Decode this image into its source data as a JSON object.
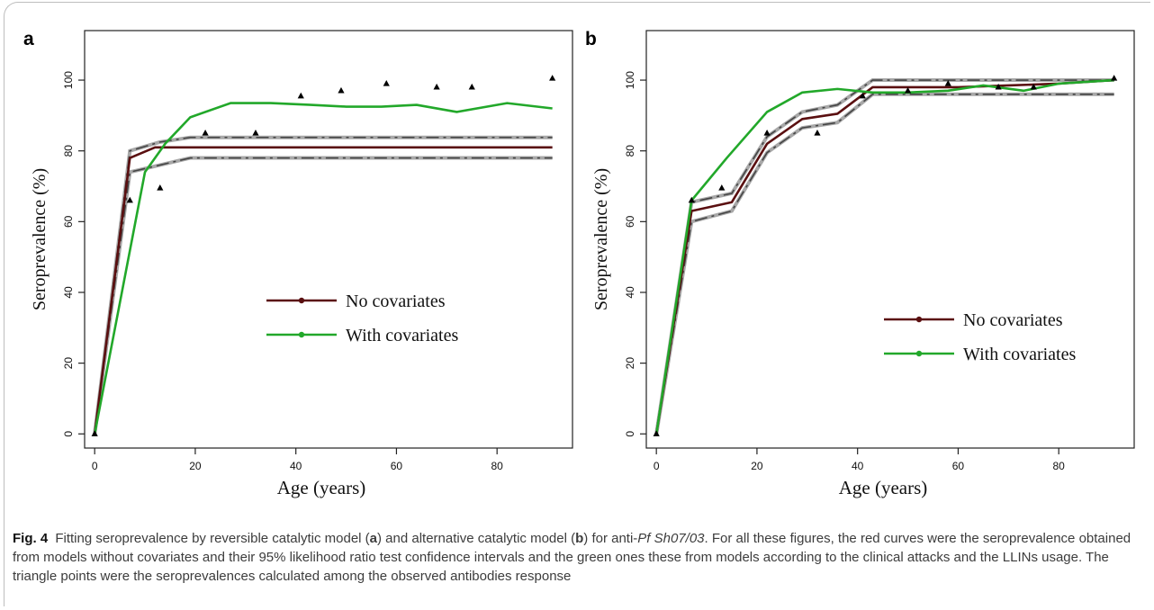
{
  "caption": {
    "fig_label": "Fig. 4",
    "text_1": " Fitting seroprevalence by reversible catalytic model (",
    "a": "a",
    "text_2": ") and alternative catalytic model (",
    "b": "b",
    "text_3": ") for anti-",
    "antigen": "Pf Sh07/03",
    "text_4": ". For all these figures, the red curves were the seroprevalence obtained from models without covariates and their 95% likelihood ratio test confidence intervals and the green ones these from models according to the clinical attacks and the LLINs usage. The triangle points were the seroprevalences calculated among the observed antibodies response"
  },
  "colors": {
    "no_covariates": "#5a0f10",
    "with_covariates": "#22a82a",
    "ci_dark": "#444444",
    "ci_light": "#a8a8a8",
    "points": "#000000"
  },
  "chart_data": [
    {
      "panel": "a",
      "type": "line",
      "xlabel": "Age (years)",
      "ylabel": "Seroprevalence (%)",
      "xlim": [
        -2,
        95
      ],
      "ylim": [
        -4,
        114
      ],
      "xticks": [
        0,
        20,
        40,
        60,
        80
      ],
      "yticks": [
        0,
        20,
        40,
        60,
        80,
        100
      ],
      "legend": {
        "position": "center-right",
        "entries": [
          "No covariates",
          "With covariates"
        ]
      },
      "series": [
        {
          "name": "No covariates",
          "x": [
            0,
            7,
            12,
            20,
            40,
            60,
            80,
            91
          ],
          "y": [
            0,
            78,
            81,
            81,
            81,
            81,
            81,
            81
          ]
        },
        {
          "name": "With covariates",
          "x": [
            0,
            10,
            14,
            19,
            27,
            35,
            43,
            50,
            57,
            64,
            72,
            82,
            91
          ],
          "y": [
            0,
            74,
            82,
            89.5,
            93.5,
            93.5,
            93,
            92.5,
            92.5,
            93,
            91,
            93.5,
            92
          ]
        }
      ],
      "confidence_band": [
        {
          "x": [
            0,
            7,
            13,
            19,
            91
          ],
          "y": [
            0,
            80,
            82.5,
            83.8,
            83.8
          ]
        },
        {
          "x": [
            0,
            7,
            13,
            19,
            91
          ],
          "y": [
            0,
            74,
            76,
            78,
            78
          ]
        }
      ],
      "points": {
        "x": [
          0,
          7,
          13,
          22,
          32,
          41,
          49,
          58,
          68,
          75,
          91
        ],
        "y": [
          0,
          66,
          69.5,
          85,
          85,
          95.5,
          97,
          99,
          98,
          98,
          100.5
        ]
      }
    },
    {
      "panel": "b",
      "type": "line",
      "xlabel": "Age (years)",
      "ylabel": "Seroprevalence (%)",
      "xlim": [
        -2,
        95
      ],
      "ylim": [
        -4,
        114
      ],
      "xticks": [
        0,
        20,
        40,
        60,
        80
      ],
      "yticks": [
        0,
        20,
        40,
        60,
        80,
        100
      ],
      "legend": {
        "position": "bottom-right",
        "entries": [
          "No covariates",
          "With covariates"
        ]
      },
      "series": [
        {
          "name": "No covariates",
          "x": [
            0,
            7,
            15,
            22,
            29,
            36,
            43,
            50,
            60,
            70,
            80,
            91
          ],
          "y": [
            0,
            63,
            65.5,
            82,
            89,
            90.5,
            98,
            98,
            98,
            98.5,
            99,
            100
          ]
        },
        {
          "name": "With covariates",
          "x": [
            0,
            7,
            14,
            22,
            29,
            36,
            43,
            50,
            58,
            65,
            73,
            80,
            91
          ],
          "y": [
            0,
            66,
            78,
            91,
            96.5,
            97.5,
            96.5,
            96.5,
            97,
            98.5,
            97,
            99,
            100
          ]
        }
      ],
      "confidence_band": [
        {
          "x": [
            0,
            7,
            15,
            22,
            29,
            36,
            43,
            60,
            91
          ],
          "y": [
            0,
            65.5,
            68,
            84,
            91,
            93,
            100,
            100,
            100
          ]
        },
        {
          "x": [
            0,
            7,
            15,
            22,
            29,
            36,
            43,
            60,
            91
          ],
          "y": [
            0,
            60,
            63,
            79.5,
            86.5,
            88,
            96,
            96,
            96
          ]
        }
      ],
      "points": {
        "x": [
          0,
          7,
          13,
          22,
          32,
          41,
          50,
          58,
          68,
          75,
          91
        ],
        "y": [
          0,
          66,
          69.5,
          85,
          85,
          95.5,
          97,
          99,
          98,
          98,
          100.5
        ]
      }
    }
  ]
}
